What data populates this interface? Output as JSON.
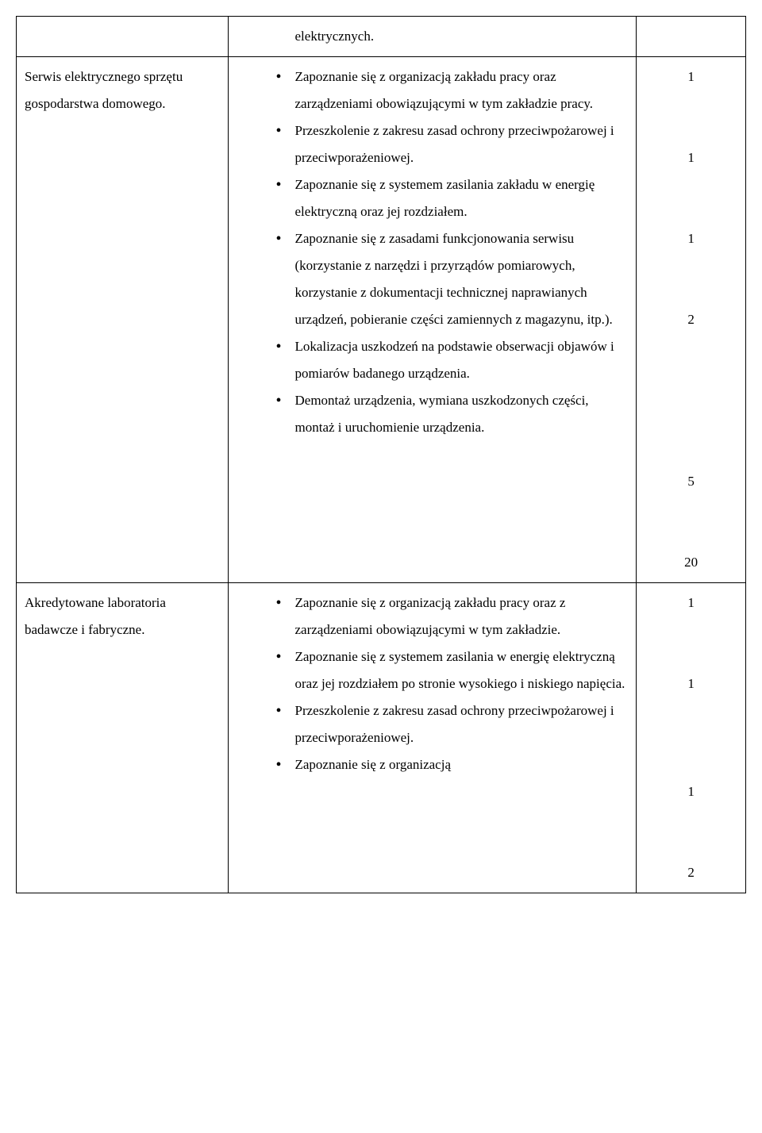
{
  "rows": [
    {
      "col1": "",
      "tail": "elektrycznych.",
      "items": [],
      "nums": []
    },
    {
      "col1": "Serwis elektrycznego sprzętu gospodarstwa domowego.",
      "tail": "",
      "items": [
        "Zapoznanie się z organizacją zakładu pracy oraz zarządzeniami obowiązującymi w tym zakładzie pracy.",
        "Przeszkolenie z zakresu zasad ochrony przeciwpożarowej i przeciwporażeniowej.",
        "Zapoznanie się z systemem zasilania zakładu w energię elektryczną oraz jej rozdziałem.",
        "Zapoznanie się z zasadami funkcjonowania serwisu (korzystanie z narzędzi i przyrządów pomiarowych, korzystanie z dokumentacji technicznej naprawianych urządzeń, pobieranie części zamiennych z magazynu, itp.).",
        "Lokalizacja uszkodzeń na podstawie obserwacji objawów i pomiarów badanego urządzenia.",
        "Demontaż urządzenia, wymiana uszkodzonych części, montaż i uruchomienie urządzenia."
      ],
      "nums": [
        {
          "v": "1",
          "gap": 0
        },
        {
          "v": "1",
          "gap": 2
        },
        {
          "v": "1",
          "gap": 2
        },
        {
          "v": "2",
          "gap": 2
        },
        {
          "v": "5",
          "gap": 5
        },
        {
          "v": "20",
          "gap": 2
        }
      ]
    },
    {
      "col1": "Akredytowane laboratoria badawcze i fabryczne.",
      "tail": "",
      "items": [
        "Zapoznanie się z organizacją zakładu pracy oraz z zarządzeniami obowiązującymi w tym zakładzie.",
        "Zapoznanie się z systemem zasilania w energię elektryczną oraz jej rozdziałem po stronie wysokiego i niskiego napięcia.",
        "Przeszkolenie z zakresu zasad ochrony przeciwpożarowej i przeciwporażeniowej.",
        "Zapoznanie się z organizacją"
      ],
      "nums": [
        {
          "v": "1",
          "gap": 0
        },
        {
          "v": "1",
          "gap": 2
        },
        {
          "v": "1",
          "gap": 3
        },
        {
          "v": "2",
          "gap": 2
        }
      ]
    }
  ]
}
